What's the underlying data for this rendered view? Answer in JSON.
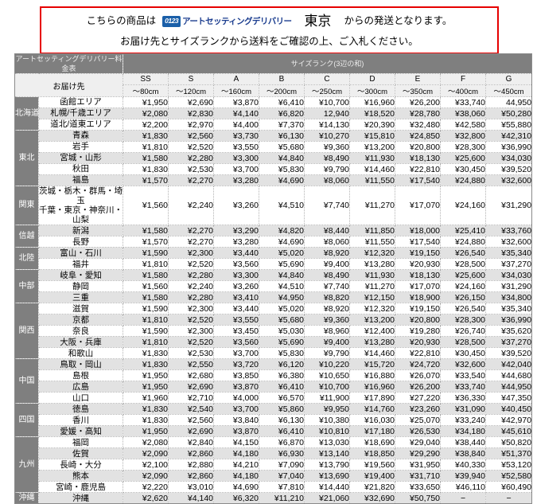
{
  "notice": {
    "line1_prefix": "こちらの商品は",
    "logo_badge": "0123",
    "logo_text": "アートセッティングデリバリー",
    "origin": "東京",
    "line1_suffix": "からの発送となります。",
    "line2": "お届け先とサイズランクから送料をご確認の上、ご入札ください。",
    "border_color": "#e60000",
    "logo_blue": "#1a5fa8"
  },
  "table": {
    "title_left": "アートセッティングデリバリー料金表",
    "title_right": "サイズランク(3辺の和)",
    "destination_header": "お届け先",
    "size_ranks": [
      "SS",
      "S",
      "A",
      "B",
      "C",
      "D",
      "E",
      "F",
      "G"
    ],
    "size_dims": [
      "～80cm",
      "～120cm",
      "～160cm",
      "～200cm",
      "～250cm",
      "～300cm",
      "～350cm",
      "～400cm",
      "～450cm"
    ],
    "colors": {
      "header_band": "#7f7f7f",
      "header_light": "#efefef",
      "alt_row": "#e2e2e2"
    },
    "regions": [
      {
        "name": "北海道",
        "rows": [
          {
            "dest": [
              "函館エリア"
            ],
            "prices": [
              "¥1,950",
              "¥2,690",
              "¥3,870",
              "¥6,410",
              "¥10,700",
              "¥16,960",
              "¥26,200",
              "¥33,740",
              "44,950"
            ]
          },
          {
            "dest": [
              "札幌/千歳エリア"
            ],
            "prices": [
              "¥2,080",
              "¥2,830",
              "¥4,140",
              "¥6,820",
              "12,940",
              "¥18,520",
              "¥28,780",
              "¥38,060",
              "¥50,280"
            ]
          },
          {
            "dest": [
              "道北/道東エリア"
            ],
            "prices": [
              "¥2,200",
              "¥2,970",
              "¥4,400",
              "¥7,370",
              "¥14,130",
              "¥20,390",
              "¥32,480",
              "¥42,580",
              "¥55,880"
            ]
          }
        ]
      },
      {
        "name": "東北",
        "rows": [
          {
            "dest": [
              "青森"
            ],
            "prices": [
              "¥1,830",
              "¥2,560",
              "¥3,730",
              "¥6,130",
              "¥10,270",
              "¥15,810",
              "¥24,850",
              "¥32,800",
              "¥42,310"
            ]
          },
          {
            "dest": [
              "岩手"
            ],
            "prices": [
              "¥1,810",
              "¥2,520",
              "¥3,550",
              "¥5,680",
              "¥9,360",
              "¥13,200",
              "¥20,800",
              "¥28,300",
              "¥36,990"
            ]
          },
          {
            "dest": [
              "宮城・山形"
            ],
            "prices": [
              "¥1,580",
              "¥2,280",
              "¥3,300",
              "¥4,840",
              "¥8,490",
              "¥11,930",
              "¥18,130",
              "¥25,600",
              "¥34,030"
            ]
          },
          {
            "dest": [
              "秋田"
            ],
            "prices": [
              "¥1,830",
              "¥2,530",
              "¥3,700",
              "¥5,830",
              "¥9,790",
              "¥14,460",
              "¥22,810",
              "¥30,450",
              "¥39,520"
            ]
          },
          {
            "dest": [
              "福島"
            ],
            "prices": [
              "¥1,570",
              "¥2,270",
              "¥3,280",
              "¥4,690",
              "¥8,060",
              "¥11,550",
              "¥17,540",
              "¥24,880",
              "¥32,600"
            ]
          }
        ]
      },
      {
        "name": "関東",
        "rows": [
          {
            "dest": [
              "茨城・栃木・群馬・埼玉",
              "千葉・東京・神奈川・山梨"
            ],
            "prices": [
              "¥1,560",
              "¥2,240",
              "¥3,260",
              "¥4,510",
              "¥7,740",
              "¥11,270",
              "¥17,070",
              "¥24,160",
              "¥31,290"
            ]
          }
        ]
      },
      {
        "name": "信越",
        "rows": [
          {
            "dest": [
              "新潟"
            ],
            "prices": [
              "¥1,580",
              "¥2,270",
              "¥3,290",
              "¥4,820",
              "¥8,440",
              "¥11,850",
              "¥18,000",
              "¥25,410",
              "¥33,760"
            ]
          },
          {
            "dest": [
              "長野"
            ],
            "prices": [
              "¥1,570",
              "¥2,270",
              "¥3,280",
              "¥4,690",
              "¥8,060",
              "¥11,550",
              "¥17,540",
              "¥24,880",
              "¥32,600"
            ]
          }
        ]
      },
      {
        "name": "北陸",
        "rows": [
          {
            "dest": [
              "富山・石川"
            ],
            "prices": [
              "¥1,590",
              "¥2,300",
              "¥3,440",
              "¥5,020",
              "¥8,920",
              "¥12,320",
              "¥19,150",
              "¥26,540",
              "¥35,340"
            ]
          },
          {
            "dest": [
              "福井"
            ],
            "prices": [
              "¥1,810",
              "¥2,520",
              "¥3,560",
              "¥5,690",
              "¥9,400",
              "¥13,280",
              "¥20,930",
              "¥28,500",
              "¥37,270"
            ]
          }
        ]
      },
      {
        "name": "中部",
        "rows": [
          {
            "dest": [
              "岐阜・愛知"
            ],
            "prices": [
              "¥1,580",
              "¥2,280",
              "¥3,300",
              "¥4,840",
              "¥8,490",
              "¥11,930",
              "¥18,130",
              "¥25,600",
              "¥34,030"
            ]
          },
          {
            "dest": [
              "静岡"
            ],
            "prices": [
              "¥1,560",
              "¥2,240",
              "¥3,260",
              "¥4,510",
              "¥7,740",
              "¥11,270",
              "¥17,070",
              "¥24,160",
              "¥31,290"
            ]
          },
          {
            "dest": [
              "三重"
            ],
            "prices": [
              "¥1,580",
              "¥2,280",
              "¥3,410",
              "¥4,950",
              "¥8,820",
              "¥12,150",
              "¥18,900",
              "¥26,150",
              "¥34,800"
            ]
          }
        ]
      },
      {
        "name": "関西",
        "rows": [
          {
            "dest": [
              "滋賀"
            ],
            "prices": [
              "¥1,590",
              "¥2,300",
              "¥3,440",
              "¥5,020",
              "¥8,920",
              "¥12,320",
              "¥19,150",
              "¥26,540",
              "¥35,340"
            ]
          },
          {
            "dest": [
              "京都"
            ],
            "prices": [
              "¥1,810",
              "¥2,520",
              "¥3,550",
              "¥5,680",
              "¥9,360",
              "¥13,200",
              "¥20,800",
              "¥28,300",
              "¥36,990"
            ]
          },
          {
            "dest": [
              "奈良"
            ],
            "prices": [
              "¥1,590",
              "¥2,300",
              "¥3,450",
              "¥5,030",
              "¥8,960",
              "¥12,400",
              "¥19,280",
              "¥26,740",
              "¥35,620"
            ]
          },
          {
            "dest": [
              "大阪・兵庫"
            ],
            "prices": [
              "¥1,810",
              "¥2,520",
              "¥3,560",
              "¥5,690",
              "¥9,400",
              "¥13,280",
              "¥20,930",
              "¥28,500",
              "¥37,270"
            ]
          },
          {
            "dest": [
              "和歌山"
            ],
            "prices": [
              "¥1,830",
              "¥2,530",
              "¥3,700",
              "¥5,830",
              "¥9,790",
              "¥14,460",
              "¥22,810",
              "¥30,450",
              "¥39,520"
            ]
          }
        ]
      },
      {
        "name": "中国",
        "rows": [
          {
            "dest": [
              "鳥取・岡山"
            ],
            "prices": [
              "¥1,830",
              "¥2,550",
              "¥3,720",
              "¥6,120",
              "¥10,220",
              "¥15,720",
              "¥24,720",
              "¥32,600",
              "¥42,040"
            ]
          },
          {
            "dest": [
              "島根"
            ],
            "prices": [
              "¥1,950",
              "¥2,680",
              "¥3,850",
              "¥6,380",
              "¥10,650",
              "¥16,880",
              "¥26,070",
              "¥33,540",
              "¥44,680"
            ]
          },
          {
            "dest": [
              "広島"
            ],
            "prices": [
              "¥1,950",
              "¥2,690",
              "¥3,870",
              "¥6,410",
              "¥10,700",
              "¥16,960",
              "¥26,200",
              "¥33,740",
              "¥44,950"
            ]
          },
          {
            "dest": [
              "山口"
            ],
            "prices": [
              "¥1,960",
              "¥2,710",
              "¥4,000",
              "¥6,570",
              "¥11,900",
              "¥17,890",
              "¥27,220",
              "¥36,330",
              "¥47,350"
            ]
          }
        ]
      },
      {
        "name": "四国",
        "rows": [
          {
            "dest": [
              "徳島"
            ],
            "prices": [
              "¥1,830",
              "¥2,540",
              "¥3,700",
              "¥5,860",
              "¥9,950",
              "¥14,760",
              "¥23,260",
              "¥31,090",
              "¥40,450"
            ]
          },
          {
            "dest": [
              "香川"
            ],
            "prices": [
              "¥1,830",
              "¥2,560",
              "¥3,840",
              "¥6,130",
              "¥10,380",
              "¥16,030",
              "¥25,070",
              "¥33,240",
              "¥42,970"
            ]
          },
          {
            "dest": [
              "愛媛・高知"
            ],
            "prices": [
              "¥1,950",
              "¥2,690",
              "¥3,870",
              "¥6,410",
              "¥10,810",
              "¥17,180",
              "¥26,530",
              "¥34,180",
              "¥45,610"
            ]
          }
        ]
      },
      {
        "name": "九州",
        "rows": [
          {
            "dest": [
              "福岡"
            ],
            "prices": [
              "¥2,080",
              "¥2,840",
              "¥4,150",
              "¥6,870",
              "¥13,030",
              "¥18,690",
              "¥29,040",
              "¥38,440",
              "¥50,820"
            ]
          },
          {
            "dest": [
              "佐賀"
            ],
            "prices": [
              "¥2,090",
              "¥2,860",
              "¥4,180",
              "¥6,930",
              "¥13,140",
              "¥18,850",
              "¥29,290",
              "¥38,840",
              "¥51,370"
            ]
          },
          {
            "dest": [
              "長崎・大分"
            ],
            "prices": [
              "¥2,100",
              "¥2,880",
              "¥4,210",
              "¥7,090",
              "¥13,790",
              "¥19,560",
              "¥31,950",
              "¥40,330",
              "¥53,120"
            ]
          },
          {
            "dest": [
              "熊本"
            ],
            "prices": [
              "¥2,090",
              "¥2,860",
              "¥4,180",
              "¥7,040",
              "¥13,690",
              "¥19,400",
              "¥31,710",
              "¥39,940",
              "¥52,580"
            ]
          },
          {
            "dest": [
              "宮崎・鹿児島"
            ],
            "prices": [
              "¥2,220",
              "¥3,010",
              "¥4,690",
              "¥7,810",
              "¥14,440",
              "¥21,820",
              "¥33,650",
              "¥46,110",
              "¥60,490"
            ]
          }
        ]
      },
      {
        "name": "沖縄",
        "rows": [
          {
            "dest": [
              "沖縄"
            ],
            "prices": [
              "¥2,620",
              "¥4,140",
              "¥6,320",
              "¥11,210",
              "¥21,060",
              "¥32,690",
              "¥50,750",
              "−",
              "−"
            ]
          }
        ]
      }
    ]
  }
}
